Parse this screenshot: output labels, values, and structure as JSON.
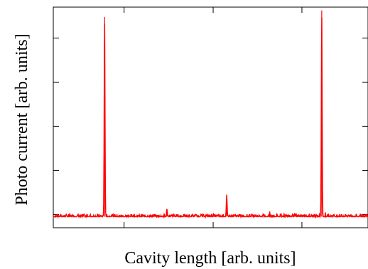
{
  "chart_data": {
    "type": "line",
    "title": "",
    "xlabel": "Cavity length [arb. units]",
    "ylabel": "Photo current [arb. units]",
    "xlim": [
      0,
      1
    ],
    "ylim": [
      0,
      1
    ],
    "tick_labels_shown": false,
    "grid": false,
    "legend": "none",
    "baseline": 0.05,
    "noise_amplitude": 0.012,
    "series": [
      {
        "color": "#ff0000",
        "peaks": [
          {
            "x": 0.163,
            "y": 0.955
          },
          {
            "x": 0.361,
            "y": 0.085
          },
          {
            "x": 0.551,
            "y": 0.15
          },
          {
            "x": 0.853,
            "y": 0.985
          }
        ]
      }
    ]
  }
}
